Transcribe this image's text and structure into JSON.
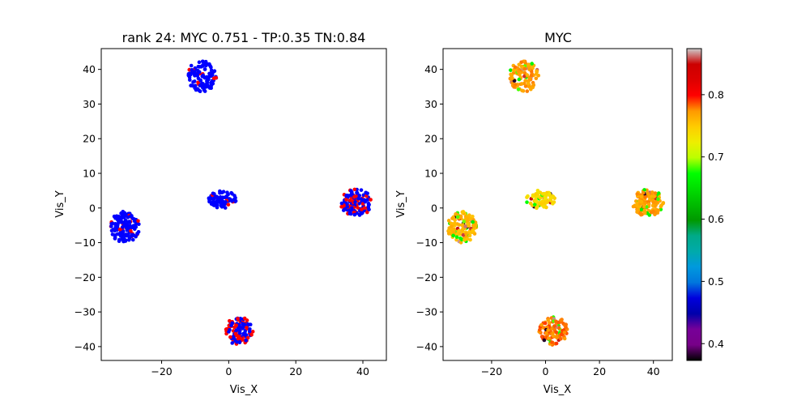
{
  "chart_data": [
    {
      "type": "scatter",
      "title": "rank 24: MYC 0.751 - TP:0.35 TN:0.84",
      "xlabel": "Vis_X",
      "ylabel": "Vis_Y",
      "xlim": [
        -38,
        47
      ],
      "ylim": [
        -44,
        46
      ],
      "xticks": [
        -20,
        0,
        20,
        40
      ],
      "yticks": [
        -40,
        -30,
        -20,
        -10,
        0,
        10,
        20,
        30,
        40
      ],
      "grid": false,
      "colors": {
        "negative": "#0000ff",
        "positive": "#ff0000"
      },
      "clusters": [
        {
          "cx": -8,
          "cy": 38,
          "rx": 4.5,
          "ry": 4.5,
          "n": 110,
          "positive_fraction": 0.08
        },
        {
          "cx": -2,
          "cy": 2.5,
          "rx": 4.5,
          "ry": 2.6,
          "n": 80,
          "positive_fraction": 0.06
        },
        {
          "cx": -31,
          "cy": -5.5,
          "rx": 4.5,
          "ry": 4.5,
          "n": 140,
          "positive_fraction": 0.12
        },
        {
          "cx": 38,
          "cy": 1.5,
          "rx": 4.8,
          "ry": 4.0,
          "n": 130,
          "positive_fraction": 0.35
        },
        {
          "cx": 3,
          "cy": -35.5,
          "rx": 4.5,
          "ry": 4.0,
          "n": 110,
          "positive_fraction": 0.45
        }
      ]
    },
    {
      "type": "scatter",
      "title": "MYC",
      "xlabel": "Vis_X",
      "ylabel": "Vis_Y",
      "xlim": [
        -38,
        47
      ],
      "ylim": [
        -44,
        46
      ],
      "xticks": [
        -20,
        0,
        20,
        40
      ],
      "yticks": [
        -40,
        -30,
        -20,
        -10,
        0,
        10,
        20,
        30,
        40
      ],
      "grid": false,
      "colormap": "nipy_spectral",
      "colorbar": {
        "range": [
          0.373,
          0.874
        ],
        "ticks": [
          0.4,
          0.5,
          0.6,
          0.7,
          0.8
        ]
      },
      "clusters": [
        {
          "cx": -8,
          "cy": 38,
          "rx": 4.5,
          "ry": 4.5,
          "n": 110,
          "mean_value": 0.77
        },
        {
          "cx": -2,
          "cy": 2.5,
          "rx": 4.5,
          "ry": 2.6,
          "n": 80,
          "mean_value": 0.74
        },
        {
          "cx": -31,
          "cy": -5.5,
          "rx": 4.5,
          "ry": 4.5,
          "n": 140,
          "mean_value": 0.76
        },
        {
          "cx": 38,
          "cy": 1.5,
          "rx": 4.8,
          "ry": 4.0,
          "n": 130,
          "mean_value": 0.77
        },
        {
          "cx": 3,
          "cy": -35.5,
          "rx": 4.5,
          "ry": 4.0,
          "n": 110,
          "mean_value": 0.78
        }
      ]
    }
  ]
}
